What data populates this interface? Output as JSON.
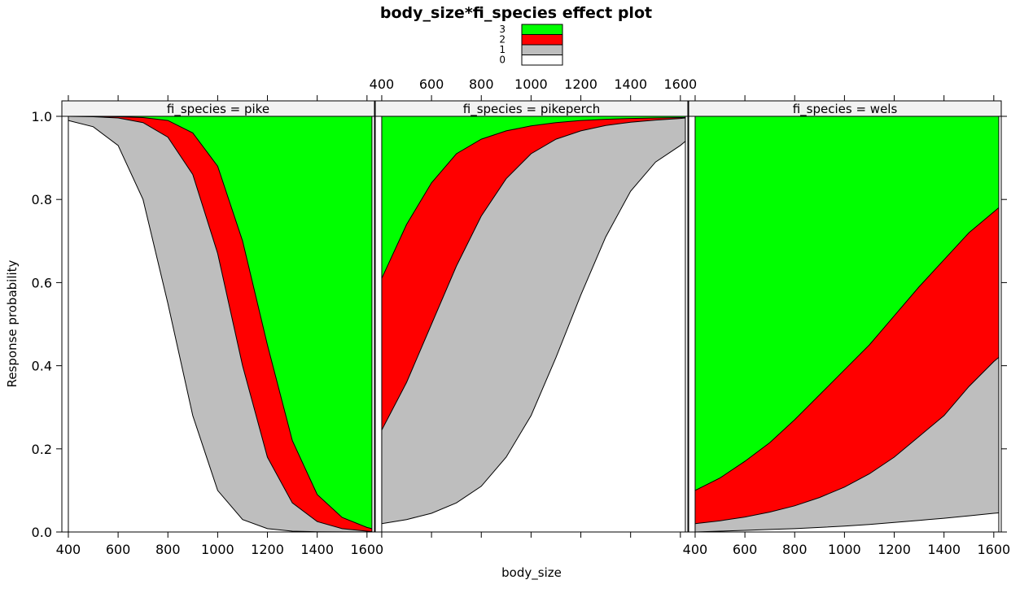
{
  "chart_data": {
    "type": "area",
    "title": "body_size*fi_species effect plot",
    "xlabel": "body_size",
    "ylabel": "Response probability",
    "xlim": [
      374,
      1630
    ],
    "ylim": [
      0,
      1
    ],
    "x_ticks": [
      400,
      600,
      800,
      1000,
      1200,
      1400,
      1600
    ],
    "y_ticks": [
      "0.0",
      "0.2",
      "0.4",
      "0.6",
      "0.8",
      "1.0"
    ],
    "legend": {
      "placement": "top-center",
      "entries": [
        {
          "label": "3",
          "color": "#00ff00"
        },
        {
          "label": "2",
          "color": "#ff0000"
        },
        {
          "label": "1",
          "color": "#bebebe"
        },
        {
          "label": "0",
          "color": "#ffffff"
        }
      ]
    },
    "stack_order": [
      "0",
      "1",
      "2",
      "3"
    ],
    "panels": [
      {
        "strip": "fi_species = pike",
        "x": [
          400,
          500,
          600,
          700,
          800,
          900,
          1000,
          1100,
          1200,
          1300,
          1400,
          1500,
          1600,
          1620
        ],
        "cum_0": [
          0.99,
          0.975,
          0.93,
          0.8,
          0.55,
          0.28,
          0.1,
          0.03,
          0.008,
          0.002,
          0.0005,
          0.0001,
          0.0,
          0.0
        ],
        "cum_01": [
          1.0,
          0.999,
          0.996,
          0.985,
          0.95,
          0.86,
          0.67,
          0.4,
          0.18,
          0.07,
          0.025,
          0.008,
          0.002,
          0.001
        ],
        "cum_012": [
          1.0,
          1.0,
          0.999,
          0.997,
          0.99,
          0.96,
          0.88,
          0.7,
          0.45,
          0.22,
          0.09,
          0.035,
          0.011,
          0.008
        ]
      },
      {
        "strip": "fi_species = pikeperch",
        "x": [
          400,
          500,
          600,
          700,
          800,
          900,
          1000,
          1100,
          1200,
          1300,
          1400,
          1500,
          1600,
          1620
        ],
        "cum_0": [
          0.02,
          0.03,
          0.045,
          0.07,
          0.11,
          0.18,
          0.28,
          0.42,
          0.57,
          0.71,
          0.82,
          0.89,
          0.93,
          0.94
        ],
        "cum_01": [
          0.245,
          0.36,
          0.5,
          0.64,
          0.76,
          0.85,
          0.91,
          0.945,
          0.965,
          0.978,
          0.986,
          0.991,
          0.995,
          0.996
        ],
        "cum_012": [
          0.61,
          0.74,
          0.84,
          0.91,
          0.945,
          0.965,
          0.977,
          0.985,
          0.99,
          0.993,
          0.995,
          0.996,
          0.997,
          0.997
        ]
      },
      {
        "strip": "fi_species = wels",
        "x": [
          400,
          500,
          600,
          700,
          800,
          900,
          1000,
          1100,
          1200,
          1300,
          1400,
          1500,
          1600,
          1620
        ],
        "cum_0": [
          0.0,
          0.002,
          0.004,
          0.006,
          0.008,
          0.011,
          0.014,
          0.018,
          0.023,
          0.028,
          0.033,
          0.039,
          0.045,
          0.046
        ],
        "cum_01": [
          0.02,
          0.027,
          0.036,
          0.048,
          0.063,
          0.083,
          0.108,
          0.14,
          0.18,
          0.23,
          0.28,
          0.35,
          0.41,
          0.42
        ],
        "cum_012": [
          0.1,
          0.13,
          0.17,
          0.215,
          0.27,
          0.33,
          0.39,
          0.45,
          0.52,
          0.59,
          0.655,
          0.72,
          0.77,
          0.78
        ]
      }
    ]
  }
}
